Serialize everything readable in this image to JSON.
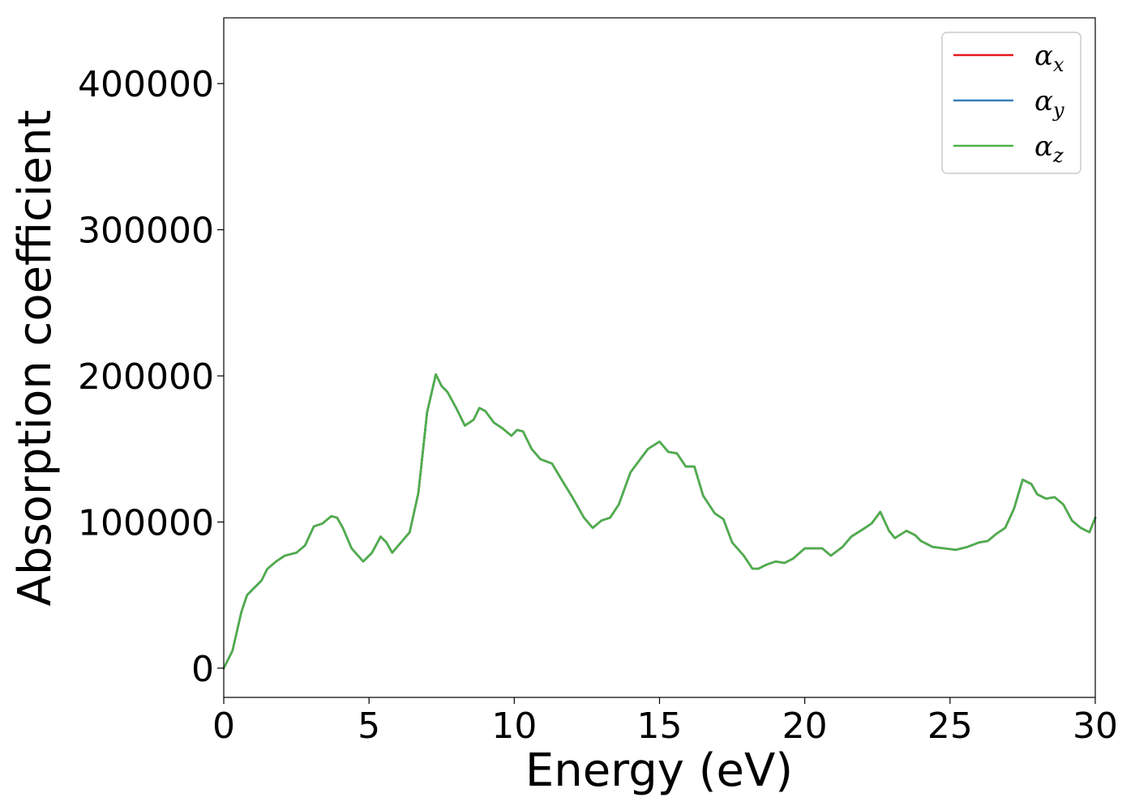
{
  "chart_data": {
    "type": "line",
    "title": "",
    "xlabel": "Energy (eV)",
    "ylabel": "Absorption coefficient",
    "xlim": [
      0,
      30
    ],
    "ylim": [
      -20000,
      445000
    ],
    "xticks": [
      0,
      5,
      10,
      15,
      20,
      25,
      30
    ],
    "yticks": [
      0,
      100000,
      200000,
      300000,
      400000
    ],
    "grid": false,
    "legend_position": "top-right",
    "legend": [
      {
        "symbol": "α",
        "sub": "x",
        "color": "#e41a1c"
      },
      {
        "symbol": "α",
        "sub": "y",
        "color": "#377eb8"
      },
      {
        "symbol": "α",
        "sub": "z",
        "color": "#4daf4a"
      }
    ],
    "x": [
      0,
      0.3,
      0.6,
      0.8,
      1.1,
      1.3,
      1.5,
      1.8,
      2.1,
      2.5,
      2.8,
      3.1,
      3.4,
      3.7,
      3.9,
      4.1,
      4.4,
      4.8,
      5.1,
      5.4,
      5.6,
      5.8,
      6.1,
      6.4,
      6.7,
      7.0,
      7.3,
      7.5,
      7.7,
      8.0,
      8.3,
      8.6,
      8.8,
      9.0,
      9.3,
      9.6,
      9.9,
      10.1,
      10.3,
      10.6,
      10.9,
      11.3,
      11.6,
      12.0,
      12.4,
      12.7,
      13.0,
      13.3,
      13.6,
      14.0,
      14.3,
      14.6,
      15.0,
      15.3,
      15.6,
      15.9,
      16.2,
      16.5,
      16.9,
      17.2,
      17.5,
      17.9,
      18.2,
      18.4,
      18.7,
      19.0,
      19.3,
      19.6,
      20.0,
      20.3,
      20.6,
      20.9,
      21.3,
      21.6,
      22.0,
      22.3,
      22.6,
      22.9,
      23.1,
      23.5,
      23.8,
      24.0,
      24.4,
      24.8,
      25.2,
      25.6,
      26.0,
      26.3,
      26.6,
      26.9,
      27.2,
      27.5,
      27.8,
      28.0,
      28.3,
      28.6,
      28.9,
      29.2,
      29.5,
      29.8,
      30.0
    ],
    "series": [
      {
        "name": "αx",
        "color": "#e41a1c",
        "values": [
          0,
          12000,
          38000,
          50000,
          56000,
          60000,
          68000,
          73000,
          77000,
          79000,
          84000,
          97000,
          99000,
          104000,
          103000,
          96000,
          82000,
          73000,
          79000,
          90000,
          86000,
          79000,
          86000,
          93000,
          120000,
          175000,
          201000,
          193000,
          189000,
          178000,
          166000,
          170000,
          178000,
          176000,
          168000,
          164000,
          159000,
          163000,
          162000,
          150000,
          143000,
          140000,
          130000,
          117000,
          103000,
          96000,
          101000,
          103000,
          112000,
          134000,
          142000,
          150000,
          155000,
          148000,
          147000,
          138000,
          138000,
          118000,
          106000,
          102000,
          86000,
          77000,
          68000,
          68000,
          71000,
          73000,
          72000,
          75000,
          82000,
          82000,
          82000,
          77000,
          83000,
          90000,
          95000,
          99000,
          107000,
          94000,
          89000,
          94000,
          91000,
          87000,
          83000,
          82000,
          81000,
          83000,
          86000,
          87000,
          92000,
          96000,
          109000,
          129000,
          126000,
          119000,
          116000,
          117000,
          112000,
          101000,
          96000,
          93000,
          103000
        ]
      },
      {
        "name": "αy",
        "color": "#377eb8",
        "values": [
          0,
          12000,
          38000,
          50000,
          56000,
          60000,
          68000,
          73000,
          77000,
          79000,
          84000,
          97000,
          99000,
          104000,
          103000,
          96000,
          82000,
          73000,
          79000,
          90000,
          86000,
          79000,
          86000,
          93000,
          120000,
          175000,
          201000,
          193000,
          189000,
          178000,
          166000,
          170000,
          178000,
          176000,
          168000,
          164000,
          159000,
          163000,
          162000,
          150000,
          143000,
          140000,
          130000,
          117000,
          103000,
          96000,
          101000,
          103000,
          112000,
          134000,
          142000,
          150000,
          155000,
          148000,
          147000,
          138000,
          138000,
          118000,
          106000,
          102000,
          86000,
          77000,
          68000,
          68000,
          71000,
          73000,
          72000,
          75000,
          82000,
          82000,
          82000,
          77000,
          83000,
          90000,
          95000,
          99000,
          107000,
          94000,
          89000,
          94000,
          91000,
          87000,
          83000,
          82000,
          81000,
          83000,
          86000,
          87000,
          92000,
          96000,
          109000,
          129000,
          126000,
          119000,
          116000,
          117000,
          112000,
          101000,
          96000,
          93000,
          103000
        ]
      },
      {
        "name": "αz",
        "color": "#4daf4a",
        "values": [
          0,
          12000,
          38000,
          50000,
          56000,
          60000,
          68000,
          73000,
          77000,
          79000,
          84000,
          97000,
          99000,
          104000,
          103000,
          96000,
          82000,
          73000,
          79000,
          90000,
          86000,
          79000,
          86000,
          93000,
          120000,
          175000,
          201000,
          193000,
          189000,
          178000,
          166000,
          170000,
          178000,
          176000,
          168000,
          164000,
          159000,
          163000,
          162000,
          150000,
          143000,
          140000,
          130000,
          117000,
          103000,
          96000,
          101000,
          103000,
          112000,
          134000,
          142000,
          150000,
          155000,
          148000,
          147000,
          138000,
          138000,
          118000,
          106000,
          102000,
          86000,
          77000,
          68000,
          68000,
          71000,
          73000,
          72000,
          75000,
          82000,
          82000,
          82000,
          77000,
          83000,
          90000,
          95000,
          99000,
          107000,
          94000,
          89000,
          94000,
          91000,
          87000,
          83000,
          82000,
          81000,
          83000,
          86000,
          87000,
          92000,
          96000,
          109000,
          129000,
          126000,
          119000,
          116000,
          117000,
          112000,
          101000,
          96000,
          93000,
          103000
        ]
      }
    ]
  }
}
